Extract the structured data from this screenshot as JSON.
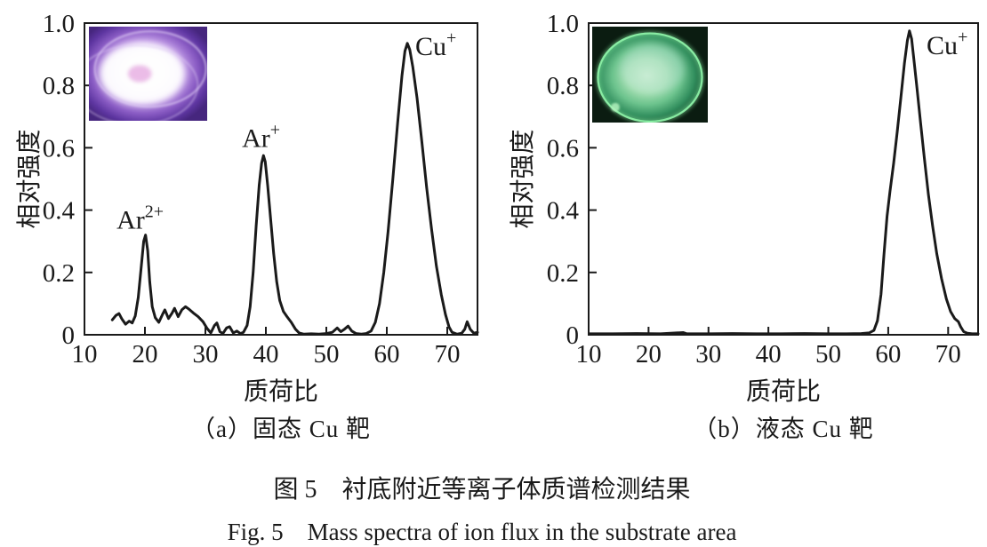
{
  "figure": {
    "caption_zh": "图 5　衬底附近等离子体质谱检测结果",
    "caption_en": "Fig. 5　Mass spectra of ion flux in the substrate area"
  },
  "line_color": "#1a1a1a",
  "axis_color": "#1a1a1a",
  "chart_data": [
    {
      "type": "line",
      "panel": "a",
      "subcaption": "（a）固态 Cu 靶",
      "xlabel": "质荷比",
      "ylabel": "相对强度",
      "xlim": [
        10,
        75
      ],
      "ylim": [
        0,
        1.0
      ],
      "x_ticks": [
        10,
        20,
        30,
        40,
        50,
        60,
        70
      ],
      "y_ticks": [
        0,
        0.2,
        0.4,
        0.6,
        0.8,
        1.0
      ],
      "grid": false,
      "legend": "none",
      "annotations": [
        {
          "base": "Ar",
          "sup": "2+",
          "x": 19.2,
          "y": 0.34,
          "anchor": "middle"
        },
        {
          "base": "Ar",
          "sup": "+",
          "x": 39.2,
          "y": 0.603,
          "anchor": "middle"
        },
        {
          "base": "Cu",
          "sup": "+",
          "x": 64.7,
          "y": 0.897,
          "anchor": "start"
        }
      ],
      "peaks": [
        {
          "ion": "Ar2+",
          "mass_to_charge": 20,
          "relative_intensity": 0.32
        },
        {
          "ion": "Ar+",
          "mass_to_charge": 39.5,
          "relative_intensity": 0.575
        },
        {
          "ion": "Cu+",
          "mass_to_charge": 63.4,
          "relative_intensity": 0.935
        }
      ],
      "series": [
        {
          "name": "solid Cu target spectrum",
          "points": [
            [
              14.6,
              0.048
            ],
            [
              15.2,
              0.062
            ],
            [
              15.7,
              0.068
            ],
            [
              16.2,
              0.05
            ],
            [
              16.8,
              0.034
            ],
            [
              17.4,
              0.044
            ],
            [
              17.9,
              0.038
            ],
            [
              18.4,
              0.06
            ],
            [
              18.9,
              0.12
            ],
            [
              19.4,
              0.22
            ],
            [
              19.8,
              0.3
            ],
            [
              20.1,
              0.32
            ],
            [
              20.45,
              0.27
            ],
            [
              20.8,
              0.17
            ],
            [
              21.2,
              0.09
            ],
            [
              21.7,
              0.055
            ],
            [
              22.3,
              0.04
            ],
            [
              22.9,
              0.065
            ],
            [
              23.3,
              0.08
            ],
            [
              23.9,
              0.052
            ],
            [
              24.5,
              0.07
            ],
            [
              24.9,
              0.085
            ],
            [
              25.5,
              0.058
            ],
            [
              26.1,
              0.08
            ],
            [
              26.7,
              0.09
            ],
            [
              27.3,
              0.082
            ],
            [
              28.0,
              0.07
            ],
            [
              28.8,
              0.058
            ],
            [
              29.6,
              0.042
            ],
            [
              30.3,
              0.02
            ],
            [
              30.9,
              0.006
            ],
            [
              31.5,
              0.03
            ],
            [
              31.9,
              0.038
            ],
            [
              32.4,
              0.01
            ],
            [
              32.9,
              0.004
            ],
            [
              33.5,
              0.022
            ],
            [
              34.0,
              0.026
            ],
            [
              34.6,
              0.006
            ],
            [
              35.2,
              0.012
            ],
            [
              35.8,
              0.004
            ],
            [
              36.3,
              0.008
            ],
            [
              36.9,
              0.03
            ],
            [
              37.4,
              0.09
            ],
            [
              37.9,
              0.2
            ],
            [
              38.4,
              0.35
            ],
            [
              38.9,
              0.48
            ],
            [
              39.3,
              0.55
            ],
            [
              39.6,
              0.575
            ],
            [
              39.9,
              0.555
            ],
            [
              40.3,
              0.48
            ],
            [
              40.8,
              0.37
            ],
            [
              41.3,
              0.26
            ],
            [
              41.8,
              0.17
            ],
            [
              42.3,
              0.11
            ],
            [
              42.9,
              0.075
            ],
            [
              43.5,
              0.058
            ],
            [
              44.2,
              0.04
            ],
            [
              44.9,
              0.018
            ],
            [
              45.5,
              0.006
            ],
            [
              46.3,
              0.002
            ],
            [
              47.5,
              0.003
            ],
            [
              48.8,
              0.002
            ],
            [
              50.0,
              0.004
            ],
            [
              51.0,
              0.008
            ],
            [
              51.8,
              0.022
            ],
            [
              52.4,
              0.01
            ],
            [
              53.0,
              0.018
            ],
            [
              53.6,
              0.028
            ],
            [
              54.2,
              0.012
            ],
            [
              54.9,
              0.004
            ],
            [
              55.8,
              0.002
            ],
            [
              56.6,
              0.004
            ],
            [
              57.4,
              0.012
            ],
            [
              58.1,
              0.04
            ],
            [
              58.8,
              0.1
            ],
            [
              59.5,
              0.2
            ],
            [
              60.2,
              0.33
            ],
            [
              61.0,
              0.5
            ],
            [
              61.8,
              0.68
            ],
            [
              62.5,
              0.83
            ],
            [
              63.0,
              0.91
            ],
            [
              63.4,
              0.935
            ],
            [
              63.8,
              0.915
            ],
            [
              64.3,
              0.86
            ],
            [
              65.0,
              0.76
            ],
            [
              65.8,
              0.62
            ],
            [
              66.6,
              0.47
            ],
            [
              67.4,
              0.34
            ],
            [
              68.2,
              0.22
            ],
            [
              69.0,
              0.13
            ],
            [
              69.7,
              0.065
            ],
            [
              70.3,
              0.025
            ],
            [
              70.8,
              0.008
            ],
            [
              71.6,
              0.002
            ],
            [
              72.4,
              0.005
            ],
            [
              72.9,
              0.018
            ],
            [
              73.3,
              0.042
            ],
            [
              73.8,
              0.018
            ],
            [
              74.4,
              0.005
            ],
            [
              75.0,
              0.008
            ]
          ]
        }
      ],
      "inset": {
        "name": "solid-cu-target-plasma-photo",
        "style": "purple-rings",
        "palette": {
          "stops": [
            [
              "0",
              "#ffffff"
            ],
            [
              "0.3",
              "#f4eafb"
            ],
            [
              "0.52",
              "#c29ce7"
            ],
            [
              "0.72",
              "#8a5cc4"
            ],
            [
              "0.88",
              "#5d35a0"
            ],
            [
              "1",
              "#46267e"
            ]
          ],
          "blob": "#ffffff",
          "dot": "#eab9e6",
          "ring": "#ddc9f3"
        }
      }
    },
    {
      "type": "line",
      "panel": "b",
      "subcaption": "（b）液态 Cu 靶",
      "xlabel": "质荷比",
      "ylabel": "相对强度",
      "xlim": [
        10,
        75
      ],
      "ylim": [
        0,
        1.0
      ],
      "x_ticks": [
        10,
        20,
        30,
        40,
        50,
        60,
        70
      ],
      "y_ticks": [
        0,
        0.2,
        0.4,
        0.6,
        0.8,
        1.0
      ],
      "grid": false,
      "legend": "none",
      "annotations": [
        {
          "base": "Cu",
          "sup": "+",
          "x": 66.4,
          "y": 0.9,
          "anchor": "start"
        }
      ],
      "peaks": [
        {
          "ion": "Cu+",
          "mass_to_charge": 63.5,
          "relative_intensity": 0.975
        }
      ],
      "series": [
        {
          "name": "liquid Cu target spectrum",
          "points": [
            [
              10.2,
              0.003
            ],
            [
              14,
              0.003
            ],
            [
              18,
              0.004
            ],
            [
              22,
              0.003
            ],
            [
              25.8,
              0.007
            ],
            [
              26.4,
              0.003
            ],
            [
              30,
              0.003
            ],
            [
              34,
              0.004
            ],
            [
              38,
              0.003
            ],
            [
              42,
              0.003
            ],
            [
              46,
              0.004
            ],
            [
              50,
              0.003
            ],
            [
              53,
              0.003
            ],
            [
              55.5,
              0.004
            ],
            [
              56.8,
              0.006
            ],
            [
              57.6,
              0.014
            ],
            [
              58.2,
              0.045
            ],
            [
              58.8,
              0.13
            ],
            [
              59.3,
              0.26
            ],
            [
              59.8,
              0.38
            ],
            [
              60.3,
              0.46
            ],
            [
              60.9,
              0.55
            ],
            [
              61.5,
              0.65
            ],
            [
              62.1,
              0.76
            ],
            [
              62.7,
              0.87
            ],
            [
              63.2,
              0.945
            ],
            [
              63.55,
              0.975
            ],
            [
              63.9,
              0.95
            ],
            [
              64.3,
              0.88
            ],
            [
              64.8,
              0.79
            ],
            [
              65.4,
              0.68
            ],
            [
              66.0,
              0.57
            ],
            [
              66.7,
              0.45
            ],
            [
              67.4,
              0.35
            ],
            [
              68.1,
              0.26
            ],
            [
              68.9,
              0.18
            ],
            [
              69.7,
              0.115
            ],
            [
              70.4,
              0.075
            ],
            [
              71.1,
              0.052
            ],
            [
              71.7,
              0.042
            ],
            [
              72.1,
              0.025
            ],
            [
              72.6,
              0.01
            ],
            [
              73.2,
              0.005
            ],
            [
              74.0,
              0.003
            ],
            [
              75.0,
              0.003
            ]
          ]
        }
      ],
      "inset": {
        "name": "liquid-cu-target-plasma-photo",
        "style": "green-disc",
        "palette": {
          "bg": "#0b1c11",
          "stops": [
            [
              "0",
              "#c6ecca"
            ],
            [
              "0.3",
              "#a3deb0"
            ],
            [
              "0.52",
              "#6cc38d"
            ],
            [
              "0.72",
              "#33905f"
            ],
            [
              "0.88",
              "#155232"
            ],
            [
              "1",
              "#0b1c11"
            ]
          ],
          "rim": "#8cefa5",
          "halo": "#cdeee8",
          "spot": "#b2f2bd"
        }
      }
    }
  ]
}
